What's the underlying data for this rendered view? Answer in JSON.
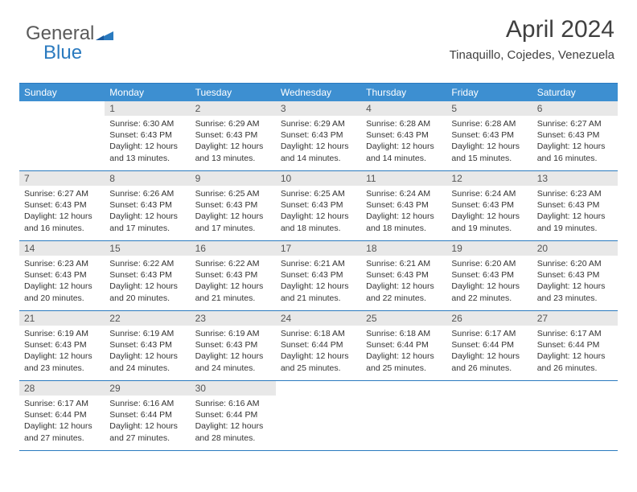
{
  "logo": {
    "text1": "General",
    "text2": "Blue"
  },
  "header": {
    "title": "April 2024",
    "subtitle": "Tinaquillo, Cojedes, Venezuela"
  },
  "daynames": [
    "Sunday",
    "Monday",
    "Tuesday",
    "Wednesday",
    "Thursday",
    "Friday",
    "Saturday"
  ],
  "colors": {
    "header_bg": "#3d8fd1",
    "border": "#2a7abf",
    "num_bg": "#e8e8e8",
    "text": "#333333"
  },
  "weeks": [
    [
      {
        "n": "",
        "sr": "",
        "ss": "",
        "dl": ""
      },
      {
        "n": "1",
        "sr": "Sunrise: 6:30 AM",
        "ss": "Sunset: 6:43 PM",
        "dl": "Daylight: 12 hours and 13 minutes."
      },
      {
        "n": "2",
        "sr": "Sunrise: 6:29 AM",
        "ss": "Sunset: 6:43 PM",
        "dl": "Daylight: 12 hours and 13 minutes."
      },
      {
        "n": "3",
        "sr": "Sunrise: 6:29 AM",
        "ss": "Sunset: 6:43 PM",
        "dl": "Daylight: 12 hours and 14 minutes."
      },
      {
        "n": "4",
        "sr": "Sunrise: 6:28 AM",
        "ss": "Sunset: 6:43 PM",
        "dl": "Daylight: 12 hours and 14 minutes."
      },
      {
        "n": "5",
        "sr": "Sunrise: 6:28 AM",
        "ss": "Sunset: 6:43 PM",
        "dl": "Daylight: 12 hours and 15 minutes."
      },
      {
        "n": "6",
        "sr": "Sunrise: 6:27 AM",
        "ss": "Sunset: 6:43 PM",
        "dl": "Daylight: 12 hours and 16 minutes."
      }
    ],
    [
      {
        "n": "7",
        "sr": "Sunrise: 6:27 AM",
        "ss": "Sunset: 6:43 PM",
        "dl": "Daylight: 12 hours and 16 minutes."
      },
      {
        "n": "8",
        "sr": "Sunrise: 6:26 AM",
        "ss": "Sunset: 6:43 PM",
        "dl": "Daylight: 12 hours and 17 minutes."
      },
      {
        "n": "9",
        "sr": "Sunrise: 6:25 AM",
        "ss": "Sunset: 6:43 PM",
        "dl": "Daylight: 12 hours and 17 minutes."
      },
      {
        "n": "10",
        "sr": "Sunrise: 6:25 AM",
        "ss": "Sunset: 6:43 PM",
        "dl": "Daylight: 12 hours and 18 minutes."
      },
      {
        "n": "11",
        "sr": "Sunrise: 6:24 AM",
        "ss": "Sunset: 6:43 PM",
        "dl": "Daylight: 12 hours and 18 minutes."
      },
      {
        "n": "12",
        "sr": "Sunrise: 6:24 AM",
        "ss": "Sunset: 6:43 PM",
        "dl": "Daylight: 12 hours and 19 minutes."
      },
      {
        "n": "13",
        "sr": "Sunrise: 6:23 AM",
        "ss": "Sunset: 6:43 PM",
        "dl": "Daylight: 12 hours and 19 minutes."
      }
    ],
    [
      {
        "n": "14",
        "sr": "Sunrise: 6:23 AM",
        "ss": "Sunset: 6:43 PM",
        "dl": "Daylight: 12 hours and 20 minutes."
      },
      {
        "n": "15",
        "sr": "Sunrise: 6:22 AM",
        "ss": "Sunset: 6:43 PM",
        "dl": "Daylight: 12 hours and 20 minutes."
      },
      {
        "n": "16",
        "sr": "Sunrise: 6:22 AM",
        "ss": "Sunset: 6:43 PM",
        "dl": "Daylight: 12 hours and 21 minutes."
      },
      {
        "n": "17",
        "sr": "Sunrise: 6:21 AM",
        "ss": "Sunset: 6:43 PM",
        "dl": "Daylight: 12 hours and 21 minutes."
      },
      {
        "n": "18",
        "sr": "Sunrise: 6:21 AM",
        "ss": "Sunset: 6:43 PM",
        "dl": "Daylight: 12 hours and 22 minutes."
      },
      {
        "n": "19",
        "sr": "Sunrise: 6:20 AM",
        "ss": "Sunset: 6:43 PM",
        "dl": "Daylight: 12 hours and 22 minutes."
      },
      {
        "n": "20",
        "sr": "Sunrise: 6:20 AM",
        "ss": "Sunset: 6:43 PM",
        "dl": "Daylight: 12 hours and 23 minutes."
      }
    ],
    [
      {
        "n": "21",
        "sr": "Sunrise: 6:19 AM",
        "ss": "Sunset: 6:43 PM",
        "dl": "Daylight: 12 hours and 23 minutes."
      },
      {
        "n": "22",
        "sr": "Sunrise: 6:19 AM",
        "ss": "Sunset: 6:43 PM",
        "dl": "Daylight: 12 hours and 24 minutes."
      },
      {
        "n": "23",
        "sr": "Sunrise: 6:19 AM",
        "ss": "Sunset: 6:43 PM",
        "dl": "Daylight: 12 hours and 24 minutes."
      },
      {
        "n": "24",
        "sr": "Sunrise: 6:18 AM",
        "ss": "Sunset: 6:44 PM",
        "dl": "Daylight: 12 hours and 25 minutes."
      },
      {
        "n": "25",
        "sr": "Sunrise: 6:18 AM",
        "ss": "Sunset: 6:44 PM",
        "dl": "Daylight: 12 hours and 25 minutes."
      },
      {
        "n": "26",
        "sr": "Sunrise: 6:17 AM",
        "ss": "Sunset: 6:44 PM",
        "dl": "Daylight: 12 hours and 26 minutes."
      },
      {
        "n": "27",
        "sr": "Sunrise: 6:17 AM",
        "ss": "Sunset: 6:44 PM",
        "dl": "Daylight: 12 hours and 26 minutes."
      }
    ],
    [
      {
        "n": "28",
        "sr": "Sunrise: 6:17 AM",
        "ss": "Sunset: 6:44 PM",
        "dl": "Daylight: 12 hours and 27 minutes."
      },
      {
        "n": "29",
        "sr": "Sunrise: 6:16 AM",
        "ss": "Sunset: 6:44 PM",
        "dl": "Daylight: 12 hours and 27 minutes."
      },
      {
        "n": "30",
        "sr": "Sunrise: 6:16 AM",
        "ss": "Sunset: 6:44 PM",
        "dl": "Daylight: 12 hours and 28 minutes."
      },
      {
        "n": "",
        "sr": "",
        "ss": "",
        "dl": ""
      },
      {
        "n": "",
        "sr": "",
        "ss": "",
        "dl": ""
      },
      {
        "n": "",
        "sr": "",
        "ss": "",
        "dl": ""
      },
      {
        "n": "",
        "sr": "",
        "ss": "",
        "dl": ""
      }
    ]
  ]
}
